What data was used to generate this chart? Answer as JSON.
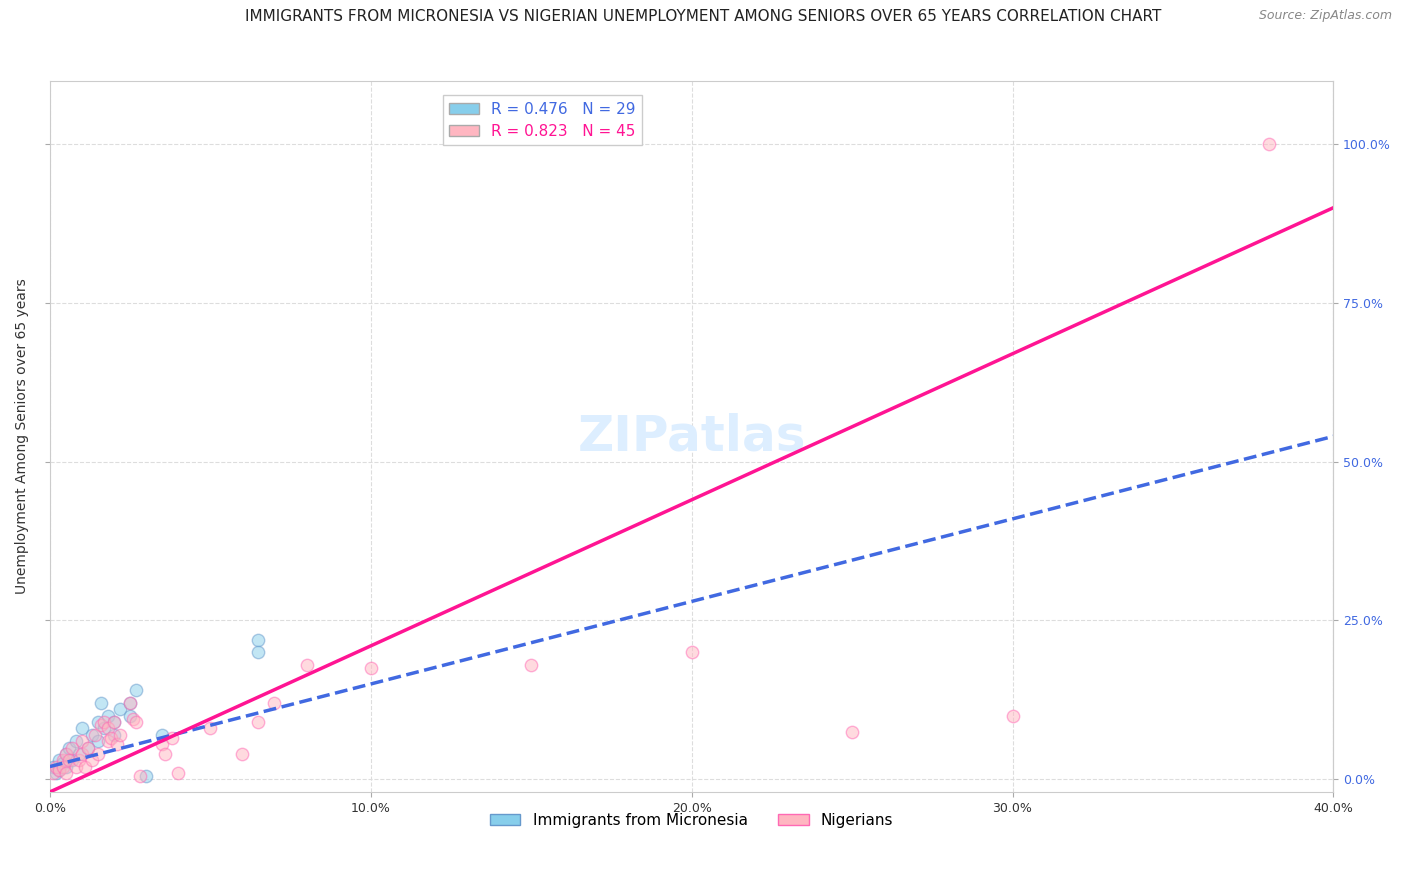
{
  "title": "IMMIGRANTS FROM MICRONESIA VS NIGERIAN UNEMPLOYMENT AMONG SENIORS OVER 65 YEARS CORRELATION CHART",
  "source": "Source: ZipAtlas.com",
  "ylabel": "Unemployment Among Seniors over 65 years",
  "x_tick_labels": [
    "0.0%",
    "10.0%",
    "20.0%",
    "30.0%",
    "40.0%"
  ],
  "x_tick_vals": [
    0,
    0.1,
    0.2,
    0.3,
    0.4
  ],
  "y_tick_labels_right": [
    "100.0%",
    "75.0%",
    "50.0%",
    "25.0%",
    "0.0%"
  ],
  "y_tick_vals_right": [
    1.0,
    0.75,
    0.5,
    0.25,
    0.0
  ],
  "xlim": [
    0,
    0.4
  ],
  "ylim": [
    -0.02,
    1.1
  ],
  "legend_entries": [
    {
      "label": "R = 0.476   N = 29",
      "color": "#87CEEB"
    },
    {
      "label": "R = 0.823   N = 45",
      "color": "#FFB6C1"
    }
  ],
  "watermark": "ZIPatlas",
  "scatter_blue": {
    "color": "#87CEEB",
    "edge_color": "#6699CC",
    "points": [
      [
        0.001,
        0.02
      ],
      [
        0.002,
        0.01
      ],
      [
        0.003,
        0.03
      ],
      [
        0.003,
        0.015
      ],
      [
        0.004,
        0.025
      ],
      [
        0.005,
        0.04
      ],
      [
        0.005,
        0.02
      ],
      [
        0.006,
        0.05
      ],
      [
        0.007,
        0.03
      ],
      [
        0.008,
        0.06
      ],
      [
        0.009,
        0.04
      ],
      [
        0.01,
        0.08
      ],
      [
        0.012,
        0.05
      ],
      [
        0.013,
        0.07
      ],
      [
        0.015,
        0.06
      ],
      [
        0.015,
        0.09
      ],
      [
        0.016,
        0.12
      ],
      [
        0.017,
        0.08
      ],
      [
        0.018,
        0.1
      ],
      [
        0.02,
        0.09
      ],
      [
        0.02,
        0.07
      ],
      [
        0.022,
        0.11
      ],
      [
        0.025,
        0.12
      ],
      [
        0.025,
        0.1
      ],
      [
        0.027,
        0.14
      ],
      [
        0.03,
        0.005
      ],
      [
        0.035,
        0.07
      ],
      [
        0.065,
        0.22
      ],
      [
        0.065,
        0.2
      ]
    ]
  },
  "scatter_pink": {
    "color": "#FFB6C1",
    "edge_color": "#FF69B4",
    "points": [
      [
        0.001,
        0.01
      ],
      [
        0.002,
        0.02
      ],
      [
        0.003,
        0.015
      ],
      [
        0.004,
        0.03
      ],
      [
        0.004,
        0.02
      ],
      [
        0.005,
        0.04
      ],
      [
        0.005,
        0.01
      ],
      [
        0.006,
        0.03
      ],
      [
        0.007,
        0.05
      ],
      [
        0.008,
        0.02
      ],
      [
        0.009,
        0.03
      ],
      [
        0.01,
        0.06
      ],
      [
        0.01,
        0.04
      ],
      [
        0.011,
        0.02
      ],
      [
        0.012,
        0.05
      ],
      [
        0.013,
        0.03
      ],
      [
        0.014,
        0.07
      ],
      [
        0.015,
        0.04
      ],
      [
        0.016,
        0.085
      ],
      [
        0.017,
        0.09
      ],
      [
        0.018,
        0.06
      ],
      [
        0.018,
        0.08
      ],
      [
        0.019,
        0.065
      ],
      [
        0.02,
        0.09
      ],
      [
        0.021,
        0.055
      ],
      [
        0.022,
        0.07
      ],
      [
        0.025,
        0.12
      ],
      [
        0.026,
        0.095
      ],
      [
        0.027,
        0.09
      ],
      [
        0.028,
        0.005
      ],
      [
        0.035,
        0.055
      ],
      [
        0.036,
        0.04
      ],
      [
        0.038,
        0.065
      ],
      [
        0.04,
        0.01
      ],
      [
        0.05,
        0.08
      ],
      [
        0.06,
        0.04
      ],
      [
        0.065,
        0.09
      ],
      [
        0.07,
        0.12
      ],
      [
        0.08,
        0.18
      ],
      [
        0.1,
        0.175
      ],
      [
        0.15,
        0.18
      ],
      [
        0.2,
        0.2
      ],
      [
        0.25,
        0.075
      ],
      [
        0.3,
        0.1
      ],
      [
        0.38,
        1.0
      ]
    ]
  },
  "trendline_blue": {
    "color": "#4169E1",
    "style": "--",
    "x_start": 0.0,
    "x_end": 0.4,
    "slope": 1.3,
    "intercept": 0.02
  },
  "trendline_pink": {
    "color": "#FF1493",
    "style": "-",
    "x_start": 0.0,
    "x_end": 0.4,
    "slope": 2.3,
    "intercept": -0.02
  },
  "grid_color": "#DDDDDD",
  "background_color": "#FFFFFF",
  "title_fontsize": 11,
  "axis_label_fontsize": 10,
  "tick_fontsize": 9,
  "legend_fontsize": 11,
  "source_fontsize": 9,
  "watermark_fontsize": 36,
  "watermark_color": "#DDEEFF",
  "scatter_size": 80,
  "scatter_alpha": 0.5,
  "scatter_linewidth": 1.0,
  "bottom_legend": [
    {
      "label": "Immigrants from Micronesia",
      "face": "#87CEEB",
      "edge": "#6699CC"
    },
    {
      "label": "Nigerians",
      "face": "#FFB6C1",
      "edge": "#FF69B4"
    }
  ]
}
